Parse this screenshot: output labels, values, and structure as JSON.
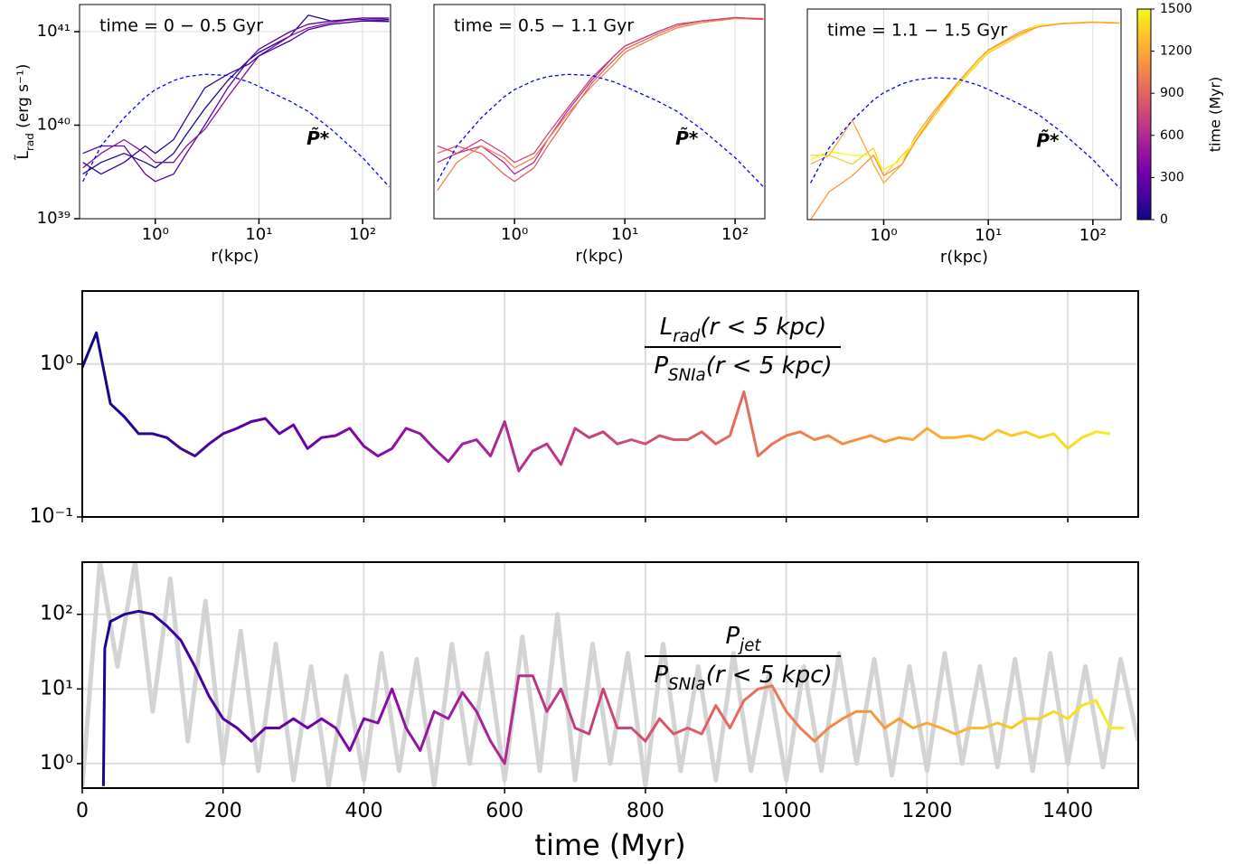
{
  "chart_data": [
    {
      "type": "line",
      "title": "time = 0 − 0.5 Gyr",
      "xlabel": "r(kpc)",
      "ylabel": {
        "main": "L̃",
        "sub": "rad",
        "rest": " (erg s⁻¹)"
      },
      "annotation": "P̃*",
      "log_x": true,
      "log_y": true,
      "grid": true,
      "xlim": [
        0.186,
        186
      ],
      "ylim": [
        1e+39,
        1.95e+41
      ],
      "xticks": [
        {
          "value": 1,
          "label": "10⁰"
        },
        {
          "value": 10,
          "label": "10¹"
        },
        {
          "value": 100,
          "label": "10²"
        }
      ],
      "yticks": [
        {
          "value": 1e+39,
          "label": "10³⁹"
        },
        {
          "value": 1e+40,
          "label": "10⁴⁰"
        },
        {
          "value": 1e+41,
          "label": "10⁴¹"
        }
      ],
      "x": [
        0.2,
        0.3,
        0.5,
        0.8,
        1,
        1.5,
        2,
        3,
        5,
        8,
        10,
        20,
        30,
        50,
        100,
        180
      ],
      "series": [
        {
          "color": "#1a0a8c",
          "values": [
            3e+39,
            4e+39,
            5e+39,
            4e+39,
            3.5e+39,
            5e+39,
            8e+39,
            1.5e+40,
            3e+40,
            5e+40,
            6e+40,
            9e+40,
            1.5e+41,
            1.3e+41,
            1.4e+41,
            1.35e+41
          ]
        },
        {
          "color": "#5a02a3",
          "values": [
            5e+39,
            6e+39,
            6e+39,
            3e+39,
            2.5e+39,
            3e+39,
            5e+39,
            1e+40,
            2.5e+40,
            5e+40,
            6.5e+40,
            1e+41,
            1.2e+41,
            1.3e+41,
            1.35e+41,
            1.3e+41
          ]
        },
        {
          "color": "#8a0da4",
          "values": [
            3.5e+39,
            5e+39,
            7e+39,
            5e+39,
            4e+39,
            4e+39,
            6e+39,
            9e+39,
            2e+40,
            4e+40,
            5.5e+40,
            9e+40,
            1.1e+41,
            1.25e+41,
            1.4e+41,
            1.4e+41
          ]
        },
        {
          "color": "#3a049a",
          "values": [
            4e+39,
            3e+39,
            4e+39,
            6e+39,
            5e+39,
            7e+39,
            1.2e+40,
            2.5e+40,
            3.5e+40,
            4.5e+40,
            5.5e+40,
            8e+40,
            1.05e+41,
            1.2e+41,
            1.3e+41,
            1.28e+41
          ]
        },
        {
          "color": "#0000ff",
          "dashed": true,
          "values": [
            2.5e+39,
            6e+39,
            1.2e+40,
            2e+40,
            2.4e+40,
            3e+40,
            3.3e+40,
            3.5e+40,
            3.4e+40,
            2.9e+40,
            2.6e+40,
            1.8e+40,
            1.4e+40,
            9e+39,
            4.5e+39,
            2.2e+39
          ]
        }
      ]
    },
    {
      "type": "line",
      "title": "time = 0.5 − 1.1 Gyr",
      "xlabel": "r(kpc)",
      "annotation": "P̃*",
      "log_x": true,
      "log_y": true,
      "grid": true,
      "xlim": [
        0.186,
        186
      ],
      "ylim": [
        1e+39,
        1.95e+41
      ],
      "xticks": [
        {
          "value": 1,
          "label": "10⁰"
        },
        {
          "value": 10,
          "label": "10¹"
        },
        {
          "value": 100,
          "label": "10²"
        }
      ],
      "x": [
        0.2,
        0.3,
        0.5,
        0.8,
        1,
        1.5,
        2,
        3,
        5,
        8,
        10,
        20,
        30,
        50,
        100,
        180
      ],
      "series": [
        {
          "color": "#b52f8c",
          "values": [
            4e+39,
            5e+39,
            6e+39,
            4e+39,
            3e+39,
            4e+39,
            7e+39,
            1.4e+40,
            3e+40,
            5.5e+40,
            7e+40,
            1e+41,
            1.2e+41,
            1.3e+41,
            1.4e+41,
            1.35e+41
          ]
        },
        {
          "color": "#e16462",
          "values": [
            5e+39,
            6e+39,
            5e+39,
            3e+39,
            2.5e+39,
            3.5e+39,
            6e+39,
            1.2e+40,
            2.8e+40,
            5e+40,
            6.5e+40,
            9.5e+40,
            1.15e+41,
            1.3e+41,
            1.4e+41,
            1.38e+41
          ]
        },
        {
          "color": "#f2844b",
          "values": [
            2e+39,
            4e+39,
            6e+39,
            4.5e+39,
            3.5e+39,
            4.5e+39,
            7e+39,
            1.3e+40,
            2.6e+40,
            4.5e+40,
            6e+40,
            9e+40,
            1.1e+41,
            1.25e+41,
            1.38e+41,
            1.35e+41
          ]
        },
        {
          "color": "#cc4778",
          "values": [
            6e+39,
            5e+39,
            7e+39,
            5e+39,
            4e+39,
            5e+39,
            8e+39,
            1.5e+40,
            3.2e+40,
            5.5e+40,
            7e+40,
            1e+41,
            1.2e+41,
            1.3e+41,
            1.42e+41,
            1.36e+41
          ]
        },
        {
          "color": "#0000ff",
          "dashed": true,
          "values": [
            2.5e+39,
            6e+39,
            1.2e+40,
            2e+40,
            2.4e+40,
            3e+40,
            3.3e+40,
            3.5e+40,
            3.4e+40,
            2.9e+40,
            2.6e+40,
            1.8e+40,
            1.4e+40,
            9e+39,
            4.5e+39,
            2.2e+39
          ]
        }
      ]
    },
    {
      "type": "line",
      "title": "time = 1.1 − 1.5 Gyr",
      "xlabel": "r(kpc)",
      "annotation": "P̃*",
      "log_x": true,
      "log_y": true,
      "grid": true,
      "xlim": [
        0.186,
        186
      ],
      "ylim": [
        1e+39,
        1.95e+41
      ],
      "xticks": [
        {
          "value": 1,
          "label": "10⁰"
        },
        {
          "value": 10,
          "label": "10¹"
        },
        {
          "value": 100,
          "label": "10²"
        }
      ],
      "x": [
        0.2,
        0.3,
        0.5,
        0.8,
        1,
        1.5,
        2,
        3,
        5,
        8,
        10,
        20,
        30,
        50,
        100,
        180
      ],
      "series": [
        {
          "color": "#fca636",
          "values": [
            4e+39,
            5e+39,
            1.2e+40,
            4e+39,
            2.5e+39,
            4e+39,
            8e+39,
            1.5e+40,
            3e+40,
            5e+40,
            7e+40,
            1.1e+41,
            1.3e+41,
            1.35e+41,
            1.4e+41,
            1.38e+41
          ]
        },
        {
          "color": "#fcce25",
          "values": [
            5e+39,
            5e+39,
            4e+39,
            6e+39,
            3e+39,
            5e+39,
            7e+39,
            1.3e+40,
            2.8e+40,
            5e+40,
            6.5e+40,
            1e+41,
            1.25e+41,
            1.35e+41,
            1.4e+41,
            1.38e+41
          ]
        },
        {
          "color": "#f0f921",
          "values": [
            4.5e+39,
            5.5e+39,
            5e+39,
            5e+39,
            3.5e+39,
            4.5e+39,
            7.5e+39,
            1.4e+40,
            2.9e+40,
            5.2e+40,
            6.8e+40,
            1.05e+41,
            1.3e+41,
            1.36e+41,
            1.42e+41,
            1.39e+41
          ]
        },
        {
          "color": "#f89540",
          "values": [
            1e+39,
            2e+39,
            3e+39,
            5e+39,
            3e+39,
            4e+39,
            7e+39,
            1.4e+40,
            3e+40,
            5.5e+40,
            7e+40,
            1.05e+41,
            1.25e+41,
            1.35e+41,
            1.4e+41,
            1.37e+41
          ]
        },
        {
          "color": "#0000ff",
          "dashed": true,
          "values": [
            2.5e+39,
            6e+39,
            1.2e+40,
            2e+40,
            2.4e+40,
            3e+40,
            3.3e+40,
            3.5e+40,
            3.4e+40,
            2.9e+40,
            2.6e+40,
            1.8e+40,
            1.4e+40,
            9e+39,
            4.5e+39,
            2.2e+39
          ]
        }
      ]
    },
    {
      "type": "colorbar",
      "label": "time (Myr)",
      "lim": [
        0,
        1500
      ],
      "ticks": [
        0,
        300,
        600,
        900,
        1200,
        1500
      ],
      "colors": [
        "#0d0887",
        "#46039f",
        "#7201a8",
        "#9c179e",
        "#bd3786",
        "#d8576b",
        "#ed7953",
        "#fb9f3a",
        "#fdca26",
        "#f0f921"
      ]
    },
    {
      "type": "line",
      "log_y": true,
      "grid": true,
      "show_xtick_labels": false,
      "fraction": {
        "numerator": {
          "main": "L",
          "sub": "rad",
          "rest": "(r < 5 kpc)"
        },
        "denominator": {
          "main": "P",
          "sub": "SNIa",
          "rest": "(r < 5 kpc)"
        }
      },
      "xlim": [
        0,
        1500
      ],
      "ylim": [
        0.1,
        3
      ],
      "xticks": [
        0,
        200,
        400,
        600,
        800,
        1000,
        1200,
        1400
      ],
      "yticks": [
        {
          "value": 0.1,
          "label": "10⁻¹"
        },
        {
          "value": 1,
          "label": "10⁰"
        }
      ],
      "series": [
        {
          "x": [
            0,
            20,
            40,
            60,
            80,
            100,
            120,
            140,
            160,
            180,
            200,
            220,
            240,
            260,
            280,
            300,
            320,
            340,
            360,
            380,
            400,
            420,
            440,
            460,
            480,
            500,
            520,
            540,
            560,
            580,
            600,
            620,
            640,
            660,
            680,
            700,
            720,
            740,
            760,
            780,
            800,
            820,
            840,
            860,
            880,
            900,
            920,
            940,
            960,
            980,
            1000,
            1020,
            1040,
            1060,
            1080,
            1100,
            1120,
            1140,
            1160,
            1180,
            1200,
            1220,
            1240,
            1260,
            1280,
            1300,
            1320,
            1340,
            1360,
            1380,
            1400,
            1420,
            1440,
            1460
          ],
          "values": [
            0.95,
            1.6,
            0.55,
            0.45,
            0.35,
            0.35,
            0.33,
            0.28,
            0.25,
            0.3,
            0.35,
            0.38,
            0.42,
            0.44,
            0.35,
            0.4,
            0.28,
            0.33,
            0.34,
            0.38,
            0.29,
            0.25,
            0.28,
            0.38,
            0.35,
            0.28,
            0.23,
            0.3,
            0.32,
            0.25,
            0.42,
            0.2,
            0.27,
            0.3,
            0.22,
            0.38,
            0.33,
            0.36,
            0.3,
            0.32,
            0.3,
            0.34,
            0.32,
            0.32,
            0.36,
            0.3,
            0.34,
            0.66,
            0.25,
            0.3,
            0.34,
            0.36,
            0.32,
            0.34,
            0.3,
            0.32,
            0.34,
            0.31,
            0.33,
            0.32,
            0.38,
            0.33,
            0.33,
            0.34,
            0.32,
            0.37,
            0.34,
            0.36,
            0.33,
            0.35,
            0.28,
            0.33,
            0.36,
            0.35
          ]
        }
      ]
    },
    {
      "type": "line",
      "log_y": true,
      "grid": true,
      "xlabel": "time (Myr)",
      "fraction": {
        "numerator": {
          "main": "P",
          "sub": "jet",
          "rest": ""
        },
        "denominator": {
          "main": "P",
          "sub": "SNIa",
          "rest": "(r < 5 kpc)"
        }
      },
      "xlim": [
        0,
        1500
      ],
      "ylim": [
        0.47,
        500
      ],
      "xticks": [
        0,
        200,
        400,
        600,
        800,
        1000,
        1200,
        1400
      ],
      "yticks": [
        {
          "value": 1,
          "label": "10⁰"
        },
        {
          "value": 10,
          "label": "10¹"
        },
        {
          "value": 100,
          "label": "10²"
        }
      ],
      "series": [
        {
          "color": "#d3d3d3",
          "width": 5,
          "x": [
            0,
            25,
            50,
            75,
            100,
            125,
            150,
            175,
            200,
            225,
            250,
            275,
            300,
            325,
            350,
            375,
            400,
            425,
            450,
            475,
            500,
            525,
            550,
            575,
            600,
            625,
            650,
            675,
            700,
            725,
            750,
            775,
            800,
            825,
            850,
            875,
            900,
            925,
            950,
            975,
            1000,
            1025,
            1050,
            1075,
            1100,
            1125,
            1150,
            1175,
            1200,
            1225,
            1250,
            1275,
            1300,
            1325,
            1350,
            1375,
            1400,
            1425,
            1450,
            1475,
            1500
          ],
          "values": [
            0.5,
            500,
            20,
            500,
            5,
            300,
            2,
            150,
            1,
            60,
            0.8,
            40,
            0.6,
            20,
            0.5,
            15,
            0.6,
            30,
            0.8,
            25,
            0.5,
            40,
            1,
            30,
            0.6,
            50,
            0.8,
            100,
            0.6,
            40,
            1,
            30,
            0.5,
            40,
            0.8,
            20,
            0.6,
            30,
            0.8,
            15,
            0.6,
            20,
            0.8,
            30,
            1,
            25,
            0.7,
            20,
            0.8,
            30,
            1,
            20,
            0.9,
            25,
            0.8,
            30,
            1,
            20,
            0.9,
            25,
            2
          ]
        },
        {
          "x": [
            30,
            32,
            40,
            60,
            80,
            100,
            120,
            140,
            160,
            180,
            200,
            220,
            240,
            260,
            280,
            300,
            320,
            340,
            360,
            380,
            400,
            420,
            440,
            460,
            480,
            500,
            520,
            540,
            560,
            580,
            600,
            620,
            640,
            660,
            680,
            700,
            720,
            740,
            760,
            780,
            800,
            820,
            840,
            860,
            880,
            900,
            920,
            940,
            960,
            980,
            1000,
            1020,
            1040,
            1060,
            1080,
            1100,
            1120,
            1140,
            1160,
            1180,
            1200,
            1220,
            1240,
            1260,
            1280,
            1300,
            1320,
            1340,
            1360,
            1380,
            1400,
            1420,
            1440,
            1460,
            1480
          ],
          "values": [
            0.5,
            35,
            80,
            100,
            110,
            100,
            70,
            45,
            20,
            8,
            4,
            3,
            2,
            3,
            3,
            4,
            3,
            4,
            3,
            1.5,
            4,
            3.5,
            10,
            3,
            1.5,
            5,
            4,
            9,
            5,
            2,
            1,
            15,
            15,
            5,
            10,
            3,
            2.5,
            10,
            3,
            3,
            2,
            4,
            2.5,
            3,
            2.5,
            6,
            3,
            7,
            10,
            11,
            5,
            3,
            2,
            3,
            4,
            5,
            5,
            3,
            4,
            3,
            3.5,
            3,
            2.5,
            3,
            3,
            3.5,
            3,
            4,
            4,
            5,
            4,
            6,
            7,
            3,
            3
          ]
        }
      ]
    }
  ]
}
